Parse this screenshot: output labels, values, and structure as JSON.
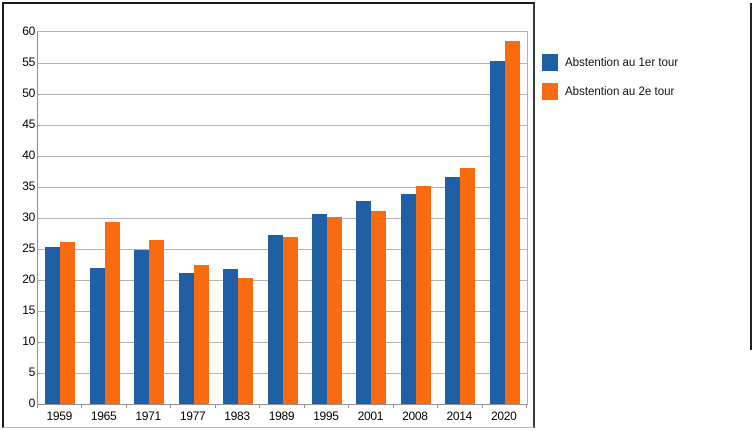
{
  "chart_data": {
    "type": "bar",
    "title": "",
    "categories": [
      "1959",
      "1965",
      "1971",
      "1977",
      "1983",
      "1989",
      "1995",
      "2001",
      "2008",
      "2014",
      "2020"
    ],
    "series": [
      {
        "name": "Abstention au 1er tour",
        "color": "#1f5fa6",
        "values": [
          25.3,
          21.9,
          24.9,
          21.1,
          21.7,
          27.3,
          30.7,
          32.8,
          33.8,
          36.6,
          55.4
        ]
      },
      {
        "name": "Abstention au 2e tour",
        "color": "#f96b10",
        "values": [
          26.2,
          29.3,
          26.4,
          22.5,
          20.3,
          26.9,
          30.1,
          31.1,
          35.1,
          38.1,
          58.6
        ]
      }
    ],
    "xlabel": "",
    "ylabel": "",
    "ylim": [
      0,
      60
    ],
    "yticks": [
      0,
      5,
      10,
      15,
      20,
      25,
      30,
      35,
      40,
      45,
      50,
      55,
      60
    ],
    "grid": true,
    "legend_position": "right"
  },
  "colors": {
    "series1": "#1f5fa6",
    "series2": "#f96b10",
    "gridline": "#b3b3b3",
    "axis": "#919191",
    "frame": "#1a1a1a",
    "background": "#ffffff",
    "text": "#000000"
  }
}
